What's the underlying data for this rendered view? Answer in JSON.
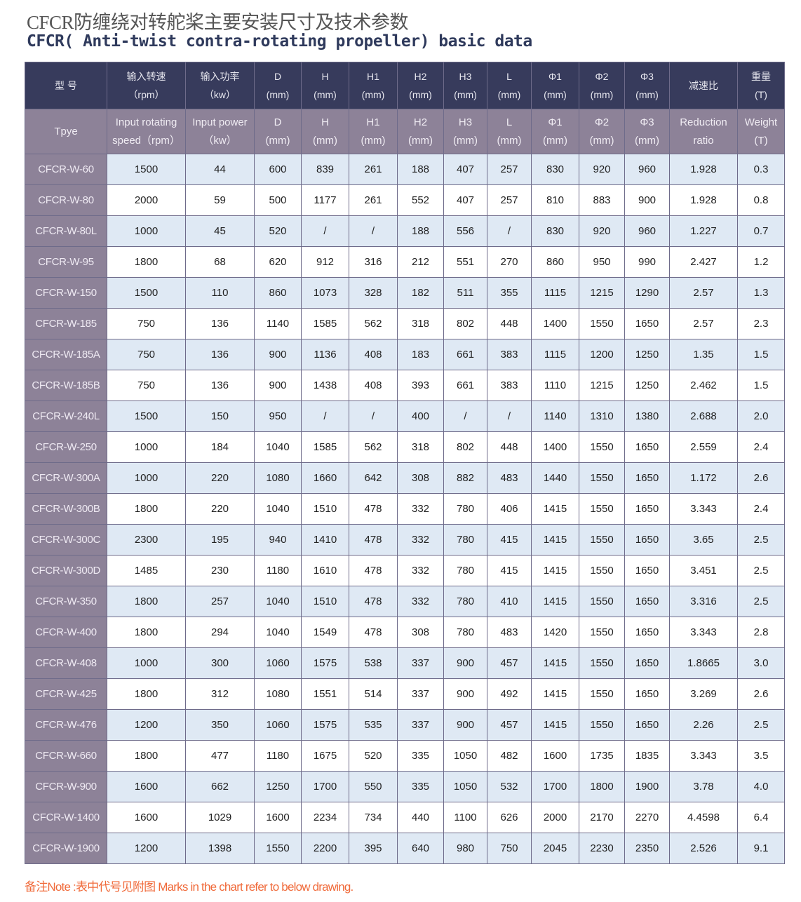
{
  "title_cn": "CFCR防缠绕对转舵桨主要安装尺寸及技术参数",
  "title_en": "CFCR( Anti-twist contra-rotating propeller) basic data",
  "header_cn": [
    [
      "型 号",
      ""
    ],
    [
      "输入转速",
      "（rpm）"
    ],
    [
      "输入功率",
      "（kw）"
    ],
    [
      "D",
      "(mm)"
    ],
    [
      "H",
      "(mm)"
    ],
    [
      "H1",
      "(mm)"
    ],
    [
      "H2",
      "(mm)"
    ],
    [
      "H3",
      "(mm)"
    ],
    [
      "L",
      "(mm)"
    ],
    [
      "Φ1",
      "(mm)"
    ],
    [
      "Φ2",
      "(mm)"
    ],
    [
      "Φ3",
      "(mm)"
    ],
    [
      "减速比",
      ""
    ],
    [
      "重量",
      "(T)"
    ]
  ],
  "header_en": [
    [
      "Tpye",
      ""
    ],
    [
      "Input rotating",
      "speed（rpm）"
    ],
    [
      "Input power",
      "（kw）"
    ],
    [
      "D",
      "(mm)"
    ],
    [
      "H",
      "(mm)"
    ],
    [
      "H1",
      "(mm)"
    ],
    [
      "H2",
      "(mm)"
    ],
    [
      "H3",
      "(mm)"
    ],
    [
      "L",
      "(mm)"
    ],
    [
      "Φ1",
      "(mm)"
    ],
    [
      "Φ2",
      "(mm)"
    ],
    [
      "Φ3",
      "(mm)"
    ],
    [
      "Reduction",
      "ratio"
    ],
    [
      "Weight",
      "(T)"
    ]
  ],
  "rows": [
    [
      "CFCR-W-60",
      "1500",
      "44",
      "600",
      "839",
      "261",
      "188",
      "407",
      "257",
      "830",
      "920",
      "960",
      "1.928",
      "0.3"
    ],
    [
      "CFCR-W-80",
      "2000",
      "59",
      "500",
      "1177",
      "261",
      "552",
      "407",
      "257",
      "810",
      "883",
      "900",
      "1.928",
      "0.8"
    ],
    [
      "CFCR-W-80L",
      "1000",
      "45",
      "520",
      "/",
      "/",
      "188",
      "556",
      "/",
      "830",
      "920",
      "960",
      "1.227",
      "0.7"
    ],
    [
      "CFCR-W-95",
      "1800",
      "68",
      "620",
      "912",
      "316",
      "212",
      "551",
      "270",
      "860",
      "950",
      "990",
      "2.427",
      "1.2"
    ],
    [
      "CFCR-W-150",
      "1500",
      "110",
      "860",
      "1073",
      "328",
      "182",
      "511",
      "355",
      "1115",
      "1215",
      "1290",
      "2.57",
      "1.3"
    ],
    [
      "CFCR-W-185",
      "750",
      "136",
      "1140",
      "1585",
      "562",
      "318",
      "802",
      "448",
      "1400",
      "1550",
      "1650",
      "2.57",
      "2.3"
    ],
    [
      "CFCR-W-185A",
      "750",
      "136",
      "900",
      "1136",
      "408",
      "183",
      "661",
      "383",
      "1115",
      "1200",
      "1250",
      "1.35",
      "1.5"
    ],
    [
      "CFCR-W-185B",
      "750",
      "136",
      "900",
      "1438",
      "408",
      "393",
      "661",
      "383",
      "1110",
      "1215",
      "1250",
      "2.462",
      "1.5"
    ],
    [
      "CFCR-W-240L",
      "1500",
      "150",
      "950",
      "/",
      "/",
      "400",
      "/",
      "/",
      "1140",
      "1310",
      "1380",
      "2.688",
      "2.0"
    ],
    [
      "CFCR-W-250",
      "1000",
      "184",
      "1040",
      "1585",
      "562",
      "318",
      "802",
      "448",
      "1400",
      "1550",
      "1650",
      "2.559",
      "2.4"
    ],
    [
      "CFCR-W-300A",
      "1000",
      "220",
      "1080",
      "1660",
      "642",
      "308",
      "882",
      "483",
      "1440",
      "1550",
      "1650",
      "1.172",
      "2.6"
    ],
    [
      "CFCR-W-300B",
      "1800",
      "220",
      "1040",
      "1510",
      "478",
      "332",
      "780",
      "406",
      "1415",
      "1550",
      "1650",
      "3.343",
      "2.4"
    ],
    [
      "CFCR-W-300C",
      "2300",
      "195",
      "940",
      "1410",
      "478",
      "332",
      "780",
      "415",
      "1415",
      "1550",
      "1650",
      "3.65",
      "2.5"
    ],
    [
      "CFCR-W-300D",
      "1485",
      "230",
      "1180",
      "1610",
      "478",
      "332",
      "780",
      "415",
      "1415",
      "1550",
      "1650",
      "3.451",
      "2.5"
    ],
    [
      "CFCR-W-350",
      "1800",
      "257",
      "1040",
      "1510",
      "478",
      "332",
      "780",
      "410",
      "1415",
      "1550",
      "1650",
      "3.316",
      "2.5"
    ],
    [
      "CFCR-W-400",
      "1800",
      "294",
      "1040",
      "1549",
      "478",
      "308",
      "780",
      "483",
      "1420",
      "1550",
      "1650",
      "3.343",
      "2.8"
    ],
    [
      "CFCR-W-408",
      "1000",
      "300",
      "1060",
      "1575",
      "538",
      "337",
      "900",
      "457",
      "1415",
      "1550",
      "1650",
      "1.8665",
      "3.0"
    ],
    [
      "CFCR-W-425",
      "1800",
      "312",
      "1080",
      "1551",
      "514",
      "337",
      "900",
      "492",
      "1415",
      "1550",
      "1650",
      "3.269",
      "2.6"
    ],
    [
      "CFCR-W-476",
      "1200",
      "350",
      "1060",
      "1575",
      "535",
      "337",
      "900",
      "457",
      "1415",
      "1550",
      "1650",
      "2.26",
      "2.5"
    ],
    [
      "CFCR-W-660",
      "1800",
      "477",
      "1180",
      "1675",
      "520",
      "335",
      "1050",
      "482",
      "1600",
      "1735",
      "1835",
      "3.343",
      "3.5"
    ],
    [
      "CFCR-W-900",
      "1600",
      "662",
      "1250",
      "1700",
      "550",
      "335",
      "1050",
      "532",
      "1700",
      "1800",
      "1900",
      "3.78",
      "4.0"
    ],
    [
      "CFCR-W-1400",
      "1600",
      "1029",
      "1600",
      "2234",
      "734",
      "440",
      "1100",
      "626",
      "2000",
      "2170",
      "2270",
      "4.4598",
      "6.4"
    ],
    [
      "CFCR-W-1900",
      "1200",
      "1398",
      "1550",
      "2200",
      "395",
      "640",
      "980",
      "750",
      "2045",
      "2230",
      "2350",
      "2.526",
      "9.1"
    ]
  ],
  "note": "备注Note :表中代号见附图 Marks in the chart refer to below drawing.",
  "colors": {
    "header_dark": "#373b5c",
    "header_mauve": "#8d8298",
    "row_blue": "#dfe9f4",
    "note": "#f06a3a"
  }
}
